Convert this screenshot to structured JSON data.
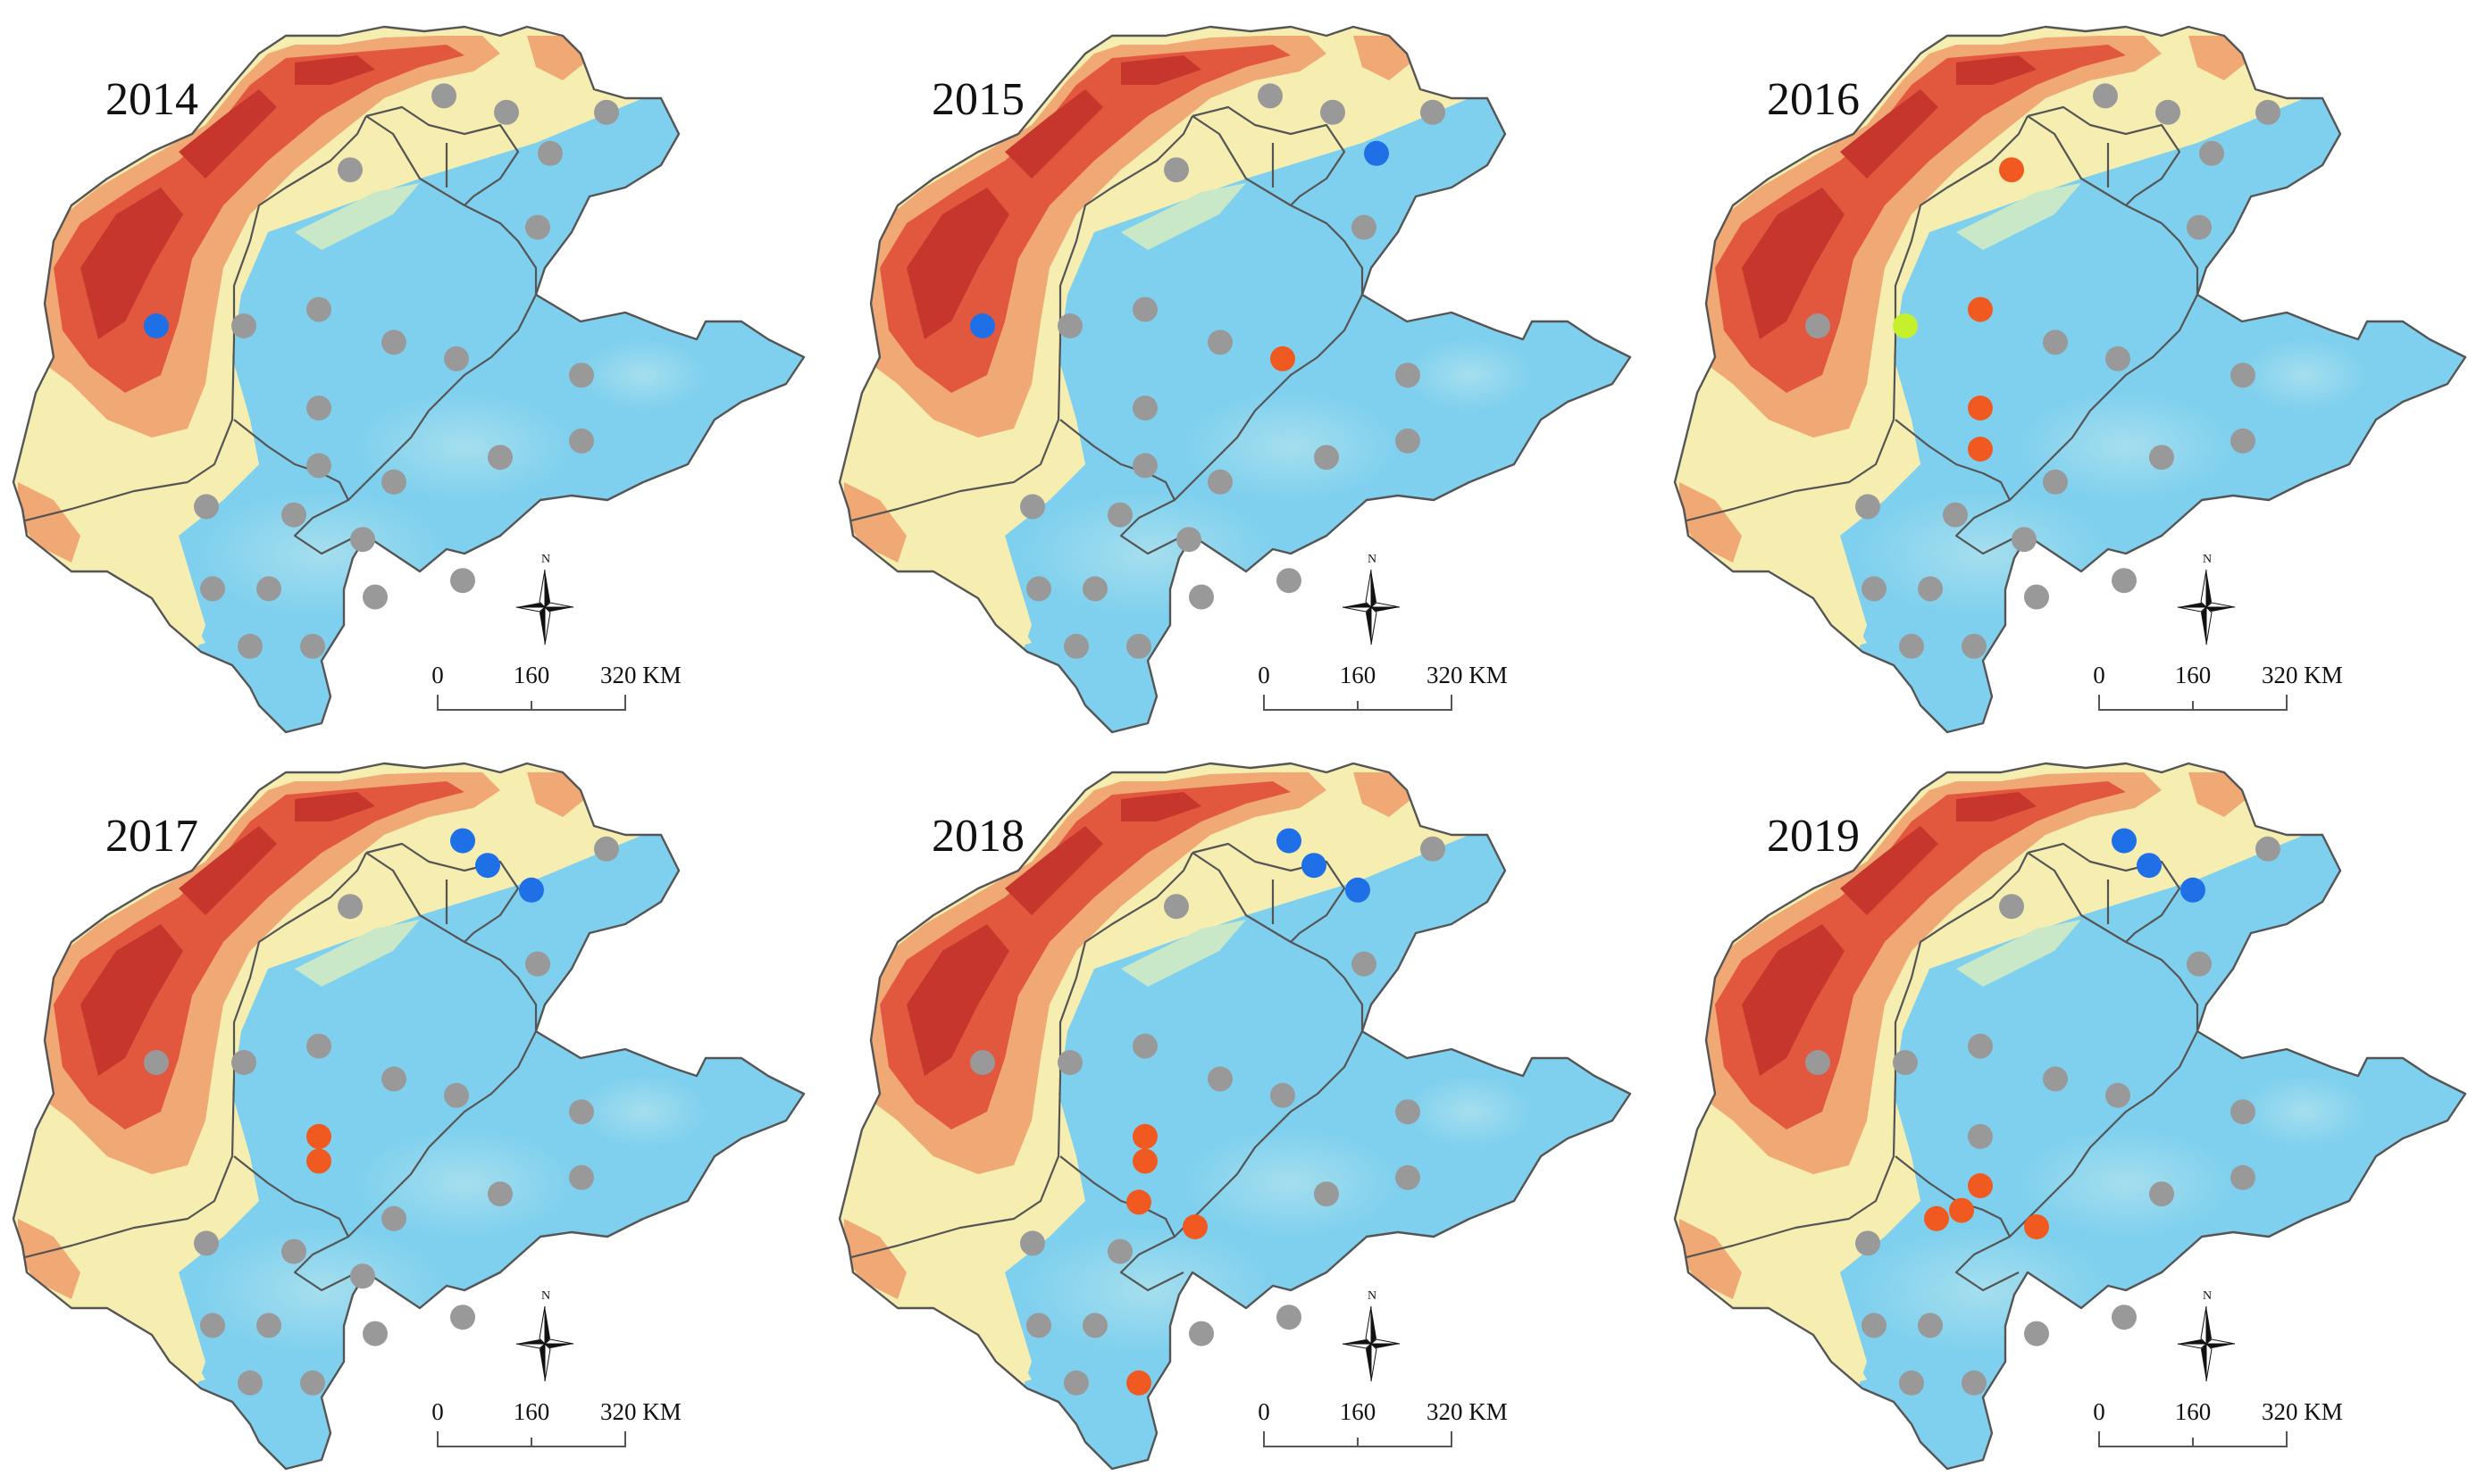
{
  "colors": {
    "background": "#ffffff",
    "plain": "#7fd0ee",
    "plain_light": "#a9e0ee",
    "upland": "#f6eeb0",
    "mountain_mid": "#f0a875",
    "mountain_high": "#e2583e",
    "mountain_peak": "#c7362c",
    "boundary": "#555555",
    "site_gray": "#999999",
    "site_blue": "#1f6fe6",
    "site_orange": "#f05a20",
    "site_lime": "#c6f02c",
    "scale_bar": "#555555"
  },
  "scale_bar": {
    "labels": [
      "0",
      "160",
      "320 KM"
    ]
  },
  "north_arrow": {
    "letter": "N"
  },
  "panels": [
    {
      "year": "2014",
      "sites": [
        {
          "lon": 114.6,
          "lat": 41.0,
          "c": "gray"
        },
        {
          "lon": 115.6,
          "lat": 40.8,
          "c": "gray"
        },
        {
          "lon": 117.2,
          "lat": 40.8,
          "c": "gray"
        },
        {
          "lon": 116.3,
          "lat": 40.3,
          "c": "gray"
        },
        {
          "lon": 113.1,
          "lat": 40.1,
          "c": "gray"
        },
        {
          "lon": 116.1,
          "lat": 39.4,
          "c": "gray"
        },
        {
          "lon": 110.0,
          "lat": 38.2,
          "c": "blue"
        },
        {
          "lon": 111.4,
          "lat": 38.2,
          "c": "gray"
        },
        {
          "lon": 112.6,
          "lat": 38.4,
          "c": "gray"
        },
        {
          "lon": 113.8,
          "lat": 38.0,
          "c": "gray"
        },
        {
          "lon": 114.8,
          "lat": 37.8,
          "c": "gray"
        },
        {
          "lon": 116.8,
          "lat": 37.6,
          "c": "gray"
        },
        {
          "lon": 112.6,
          "lat": 37.2,
          "c": "gray"
        },
        {
          "lon": 116.8,
          "lat": 36.8,
          "c": "gray"
        },
        {
          "lon": 112.6,
          "lat": 36.5,
          "c": "gray"
        },
        {
          "lon": 113.8,
          "lat": 36.3,
          "c": "gray"
        },
        {
          "lon": 115.5,
          "lat": 36.6,
          "c": "gray"
        },
        {
          "lon": 110.8,
          "lat": 36.0,
          "c": "gray"
        },
        {
          "lon": 112.2,
          "lat": 35.9,
          "c": "gray"
        },
        {
          "lon": 113.3,
          "lat": 35.6,
          "c": "gray"
        },
        {
          "lon": 110.9,
          "lat": 35.0,
          "c": "gray"
        },
        {
          "lon": 111.8,
          "lat": 35.0,
          "c": "gray"
        },
        {
          "lon": 113.5,
          "lat": 34.9,
          "c": "gray"
        },
        {
          "lon": 114.9,
          "lat": 35.1,
          "c": "gray"
        },
        {
          "lon": 111.5,
          "lat": 34.3,
          "c": "gray"
        },
        {
          "lon": 112.5,
          "lat": 34.3,
          "c": "gray"
        }
      ]
    },
    {
      "year": "2015",
      "sites": [
        {
          "lon": 114.6,
          "lat": 41.0,
          "c": "gray"
        },
        {
          "lon": 115.6,
          "lat": 40.8,
          "c": "gray"
        },
        {
          "lon": 117.2,
          "lat": 40.8,
          "c": "gray"
        },
        {
          "lon": 116.3,
          "lat": 40.3,
          "c": "blue"
        },
        {
          "lon": 113.1,
          "lat": 40.1,
          "c": "gray"
        },
        {
          "lon": 116.1,
          "lat": 39.4,
          "c": "gray"
        },
        {
          "lon": 110.0,
          "lat": 38.2,
          "c": "blue"
        },
        {
          "lon": 111.4,
          "lat": 38.2,
          "c": "gray"
        },
        {
          "lon": 112.6,
          "lat": 38.4,
          "c": "gray"
        },
        {
          "lon": 113.8,
          "lat": 38.0,
          "c": "gray"
        },
        {
          "lon": 114.8,
          "lat": 37.8,
          "c": "orange"
        },
        {
          "lon": 116.8,
          "lat": 37.6,
          "c": "gray"
        },
        {
          "lon": 112.6,
          "lat": 37.2,
          "c": "gray"
        },
        {
          "lon": 116.8,
          "lat": 36.8,
          "c": "gray"
        },
        {
          "lon": 112.6,
          "lat": 36.5,
          "c": "gray"
        },
        {
          "lon": 113.8,
          "lat": 36.3,
          "c": "gray"
        },
        {
          "lon": 115.5,
          "lat": 36.6,
          "c": "gray"
        },
        {
          "lon": 110.8,
          "lat": 36.0,
          "c": "gray"
        },
        {
          "lon": 112.2,
          "lat": 35.9,
          "c": "gray"
        },
        {
          "lon": 113.3,
          "lat": 35.6,
          "c": "gray"
        },
        {
          "lon": 110.9,
          "lat": 35.0,
          "c": "gray"
        },
        {
          "lon": 111.8,
          "lat": 35.0,
          "c": "gray"
        },
        {
          "lon": 113.5,
          "lat": 34.9,
          "c": "gray"
        },
        {
          "lon": 114.9,
          "lat": 35.1,
          "c": "gray"
        },
        {
          "lon": 111.5,
          "lat": 34.3,
          "c": "gray"
        },
        {
          "lon": 112.5,
          "lat": 34.3,
          "c": "gray"
        }
      ]
    },
    {
      "year": "2016",
      "sites": [
        {
          "lon": 114.6,
          "lat": 41.0,
          "c": "gray"
        },
        {
          "lon": 115.6,
          "lat": 40.8,
          "c": "gray"
        },
        {
          "lon": 117.2,
          "lat": 40.8,
          "c": "gray"
        },
        {
          "lon": 116.3,
          "lat": 40.3,
          "c": "gray"
        },
        {
          "lon": 113.1,
          "lat": 40.1,
          "c": "orange"
        },
        {
          "lon": 116.1,
          "lat": 39.4,
          "c": "gray"
        },
        {
          "lon": 110.0,
          "lat": 38.2,
          "c": "gray"
        },
        {
          "lon": 111.4,
          "lat": 38.2,
          "c": "lime"
        },
        {
          "lon": 112.6,
          "lat": 38.4,
          "c": "orange"
        },
        {
          "lon": 113.8,
          "lat": 38.0,
          "c": "gray"
        },
        {
          "lon": 114.8,
          "lat": 37.8,
          "c": "gray"
        },
        {
          "lon": 116.8,
          "lat": 37.6,
          "c": "gray"
        },
        {
          "lon": 112.6,
          "lat": 37.2,
          "c": "orange"
        },
        {
          "lon": 116.8,
          "lat": 36.8,
          "c": "gray"
        },
        {
          "lon": 112.6,
          "lat": 36.7,
          "c": "orange"
        },
        {
          "lon": 113.8,
          "lat": 36.3,
          "c": "gray"
        },
        {
          "lon": 115.5,
          "lat": 36.6,
          "c": "gray"
        },
        {
          "lon": 110.8,
          "lat": 36.0,
          "c": "gray"
        },
        {
          "lon": 112.2,
          "lat": 35.9,
          "c": "gray"
        },
        {
          "lon": 113.3,
          "lat": 35.6,
          "c": "gray"
        },
        {
          "lon": 110.9,
          "lat": 35.0,
          "c": "gray"
        },
        {
          "lon": 111.8,
          "lat": 35.0,
          "c": "gray"
        },
        {
          "lon": 113.5,
          "lat": 34.9,
          "c": "gray"
        },
        {
          "lon": 114.9,
          "lat": 35.1,
          "c": "gray"
        },
        {
          "lon": 111.5,
          "lat": 34.3,
          "c": "gray"
        },
        {
          "lon": 112.5,
          "lat": 34.3,
          "c": "gray"
        }
      ]
    },
    {
      "year": "2017",
      "sites": [
        {
          "lon": 114.9,
          "lat": 40.9,
          "c": "blue"
        },
        {
          "lon": 115.3,
          "lat": 40.6,
          "c": "blue"
        },
        {
          "lon": 116.0,
          "lat": 40.3,
          "c": "blue"
        },
        {
          "lon": 117.2,
          "lat": 40.8,
          "c": "gray"
        },
        {
          "lon": 113.1,
          "lat": 40.1,
          "c": "gray"
        },
        {
          "lon": 116.1,
          "lat": 39.4,
          "c": "gray"
        },
        {
          "lon": 110.0,
          "lat": 38.2,
          "c": "gray"
        },
        {
          "lon": 111.4,
          "lat": 38.2,
          "c": "gray"
        },
        {
          "lon": 112.6,
          "lat": 38.4,
          "c": "gray"
        },
        {
          "lon": 113.8,
          "lat": 38.0,
          "c": "gray"
        },
        {
          "lon": 114.8,
          "lat": 37.8,
          "c": "gray"
        },
        {
          "lon": 116.8,
          "lat": 37.6,
          "c": "gray"
        },
        {
          "lon": 112.6,
          "lat": 37.3,
          "c": "orange"
        },
        {
          "lon": 112.6,
          "lat": 37.0,
          "c": "orange"
        },
        {
          "lon": 116.8,
          "lat": 36.8,
          "c": "gray"
        },
        {
          "lon": 113.8,
          "lat": 36.3,
          "c": "gray"
        },
        {
          "lon": 115.5,
          "lat": 36.6,
          "c": "gray"
        },
        {
          "lon": 110.8,
          "lat": 36.0,
          "c": "gray"
        },
        {
          "lon": 112.2,
          "lat": 35.9,
          "c": "gray"
        },
        {
          "lon": 113.3,
          "lat": 35.6,
          "c": "gray"
        },
        {
          "lon": 110.9,
          "lat": 35.0,
          "c": "gray"
        },
        {
          "lon": 111.8,
          "lat": 35.0,
          "c": "gray"
        },
        {
          "lon": 113.5,
          "lat": 34.9,
          "c": "gray"
        },
        {
          "lon": 114.9,
          "lat": 35.1,
          "c": "gray"
        },
        {
          "lon": 111.5,
          "lat": 34.3,
          "c": "gray"
        },
        {
          "lon": 112.5,
          "lat": 34.3,
          "c": "gray"
        }
      ]
    },
    {
      "year": "2018",
      "sites": [
        {
          "lon": 114.9,
          "lat": 40.9,
          "c": "blue"
        },
        {
          "lon": 115.3,
          "lat": 40.6,
          "c": "blue"
        },
        {
          "lon": 116.0,
          "lat": 40.3,
          "c": "blue"
        },
        {
          "lon": 117.2,
          "lat": 40.8,
          "c": "gray"
        },
        {
          "lon": 113.1,
          "lat": 40.1,
          "c": "gray"
        },
        {
          "lon": 116.1,
          "lat": 39.4,
          "c": "gray"
        },
        {
          "lon": 110.0,
          "lat": 38.2,
          "c": "gray"
        },
        {
          "lon": 111.4,
          "lat": 38.2,
          "c": "gray"
        },
        {
          "lon": 112.6,
          "lat": 38.4,
          "c": "gray"
        },
        {
          "lon": 113.8,
          "lat": 38.0,
          "c": "gray"
        },
        {
          "lon": 114.8,
          "lat": 37.8,
          "c": "gray"
        },
        {
          "lon": 116.8,
          "lat": 37.6,
          "c": "gray"
        },
        {
          "lon": 112.6,
          "lat": 37.3,
          "c": "orange"
        },
        {
          "lon": 112.6,
          "lat": 37.0,
          "c": "orange"
        },
        {
          "lon": 112.5,
          "lat": 36.5,
          "c": "orange"
        },
        {
          "lon": 113.4,
          "lat": 36.2,
          "c": "orange"
        },
        {
          "lon": 116.8,
          "lat": 36.8,
          "c": "gray"
        },
        {
          "lon": 115.5,
          "lat": 36.6,
          "c": "gray"
        },
        {
          "lon": 110.8,
          "lat": 36.0,
          "c": "gray"
        },
        {
          "lon": 112.2,
          "lat": 35.9,
          "c": "gray"
        },
        {
          "lon": 110.9,
          "lat": 35.0,
          "c": "gray"
        },
        {
          "lon": 111.8,
          "lat": 35.0,
          "c": "gray"
        },
        {
          "lon": 113.5,
          "lat": 34.9,
          "c": "gray"
        },
        {
          "lon": 114.9,
          "lat": 35.1,
          "c": "gray"
        },
        {
          "lon": 111.5,
          "lat": 34.3,
          "c": "gray"
        },
        {
          "lon": 112.5,
          "lat": 34.3,
          "c": "orange"
        }
      ]
    },
    {
      "year": "2019",
      "sites": [
        {
          "lon": 114.9,
          "lat": 40.9,
          "c": "blue"
        },
        {
          "lon": 115.3,
          "lat": 40.6,
          "c": "blue"
        },
        {
          "lon": 116.0,
          "lat": 40.3,
          "c": "blue"
        },
        {
          "lon": 117.2,
          "lat": 40.8,
          "c": "gray"
        },
        {
          "lon": 113.1,
          "lat": 40.1,
          "c": "gray"
        },
        {
          "lon": 116.1,
          "lat": 39.4,
          "c": "gray"
        },
        {
          "lon": 110.0,
          "lat": 38.2,
          "c": "gray"
        },
        {
          "lon": 111.4,
          "lat": 38.2,
          "c": "gray"
        },
        {
          "lon": 112.6,
          "lat": 38.4,
          "c": "gray"
        },
        {
          "lon": 113.8,
          "lat": 38.0,
          "c": "gray"
        },
        {
          "lon": 114.8,
          "lat": 37.8,
          "c": "gray"
        },
        {
          "lon": 116.8,
          "lat": 37.6,
          "c": "gray"
        },
        {
          "lon": 112.6,
          "lat": 37.3,
          "c": "gray"
        },
        {
          "lon": 112.6,
          "lat": 36.7,
          "c": "orange"
        },
        {
          "lon": 112.3,
          "lat": 36.4,
          "c": "orange"
        },
        {
          "lon": 113.5,
          "lat": 36.2,
          "c": "orange"
        },
        {
          "lon": 116.8,
          "lat": 36.8,
          "c": "gray"
        },
        {
          "lon": 115.5,
          "lat": 36.6,
          "c": "gray"
        },
        {
          "lon": 110.8,
          "lat": 36.0,
          "c": "gray"
        },
        {
          "lon": 111.9,
          "lat": 36.3,
          "c": "orange"
        },
        {
          "lon": 110.9,
          "lat": 35.0,
          "c": "gray"
        },
        {
          "lon": 111.8,
          "lat": 35.0,
          "c": "gray"
        },
        {
          "lon": 113.5,
          "lat": 34.9,
          "c": "gray"
        },
        {
          "lon": 114.9,
          "lat": 35.1,
          "c": "gray"
        },
        {
          "lon": 111.5,
          "lat": 34.3,
          "c": "gray"
        },
        {
          "lon": 112.5,
          "lat": 34.3,
          "c": "gray"
        }
      ]
    }
  ]
}
